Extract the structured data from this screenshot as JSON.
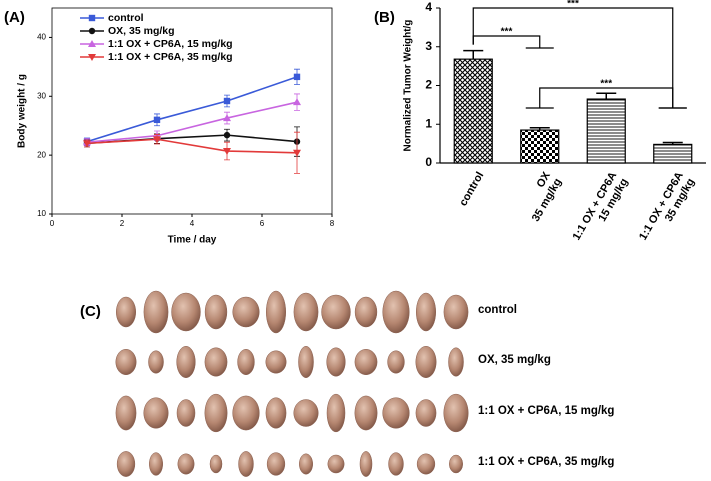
{
  "chart_data": [
    {
      "type": "line",
      "panel": "(A)",
      "xlabel": "Time / day",
      "ylabel": "Body weight / g",
      "x": [
        1,
        3,
        5,
        7
      ],
      "xlim": [
        0,
        8
      ],
      "xticks": [
        0,
        2,
        4,
        6,
        8
      ],
      "ylim": [
        10,
        45
      ],
      "yticks": [
        10,
        20,
        30,
        40
      ],
      "legend": "upper left",
      "series": [
        {
          "name": "control",
          "color": "#3a5ad8",
          "marker": "square",
          "values": [
            22.3,
            26,
            29.2,
            33.3
          ],
          "errors": [
            0.6,
            1,
            1,
            1.3
          ]
        },
        {
          "name": "OX, 35 mg/kg",
          "color": "#111111",
          "marker": "circle",
          "values": [
            22,
            22.8,
            23.4,
            22.3
          ],
          "errors": [
            0.6,
            0.8,
            1,
            2.5
          ]
        },
        {
          "name": "1:1 OX + CP6A, 15 mg/kg",
          "color": "#c865e0",
          "marker": "triangle-up",
          "values": [
            22.2,
            23.3,
            26.3,
            29
          ],
          "errors": [
            0.6,
            0.8,
            1,
            1.4
          ]
        },
        {
          "name": "1:1 OX + CP6A, 35 mg/kg",
          "color": "#e23a3a",
          "marker": "triangle-down",
          "values": [
            22,
            22.7,
            20.7,
            20.4
          ],
          "errors": [
            0.6,
            0.8,
            1.5,
            3.5
          ]
        }
      ]
    },
    {
      "type": "bar",
      "panel": "(B)",
      "ylabel": "Normalized Tumor Weight/g",
      "categories": [
        [
          "control"
        ],
        [
          "OX",
          "35 mg/kg"
        ],
        [
          "1:1 OX + CP6A",
          "15 mg/kg"
        ],
        [
          "1:1 OX + CP6A",
          "35 mg/kg"
        ]
      ],
      "values": [
        2.68,
        0.85,
        1.65,
        0.48
      ],
      "errors": [
        0.22,
        0.06,
        0.15,
        0.05
      ],
      "patterns": [
        "crosshatch",
        "checker",
        "hlines",
        "hlines"
      ],
      "ylim": [
        0,
        4
      ],
      "yticks": [
        0,
        1,
        2,
        3,
        4
      ],
      "annotations": [
        "***",
        "***",
        "***"
      ]
    }
  ],
  "panel_c": {
    "label": "(C)",
    "rows": [
      "control",
      "OX, 35 mg/kg",
      "1:1 OX + CP6A, 15 mg/kg",
      "1:1 OX + CP6A, 35 mg/kg"
    ]
  }
}
